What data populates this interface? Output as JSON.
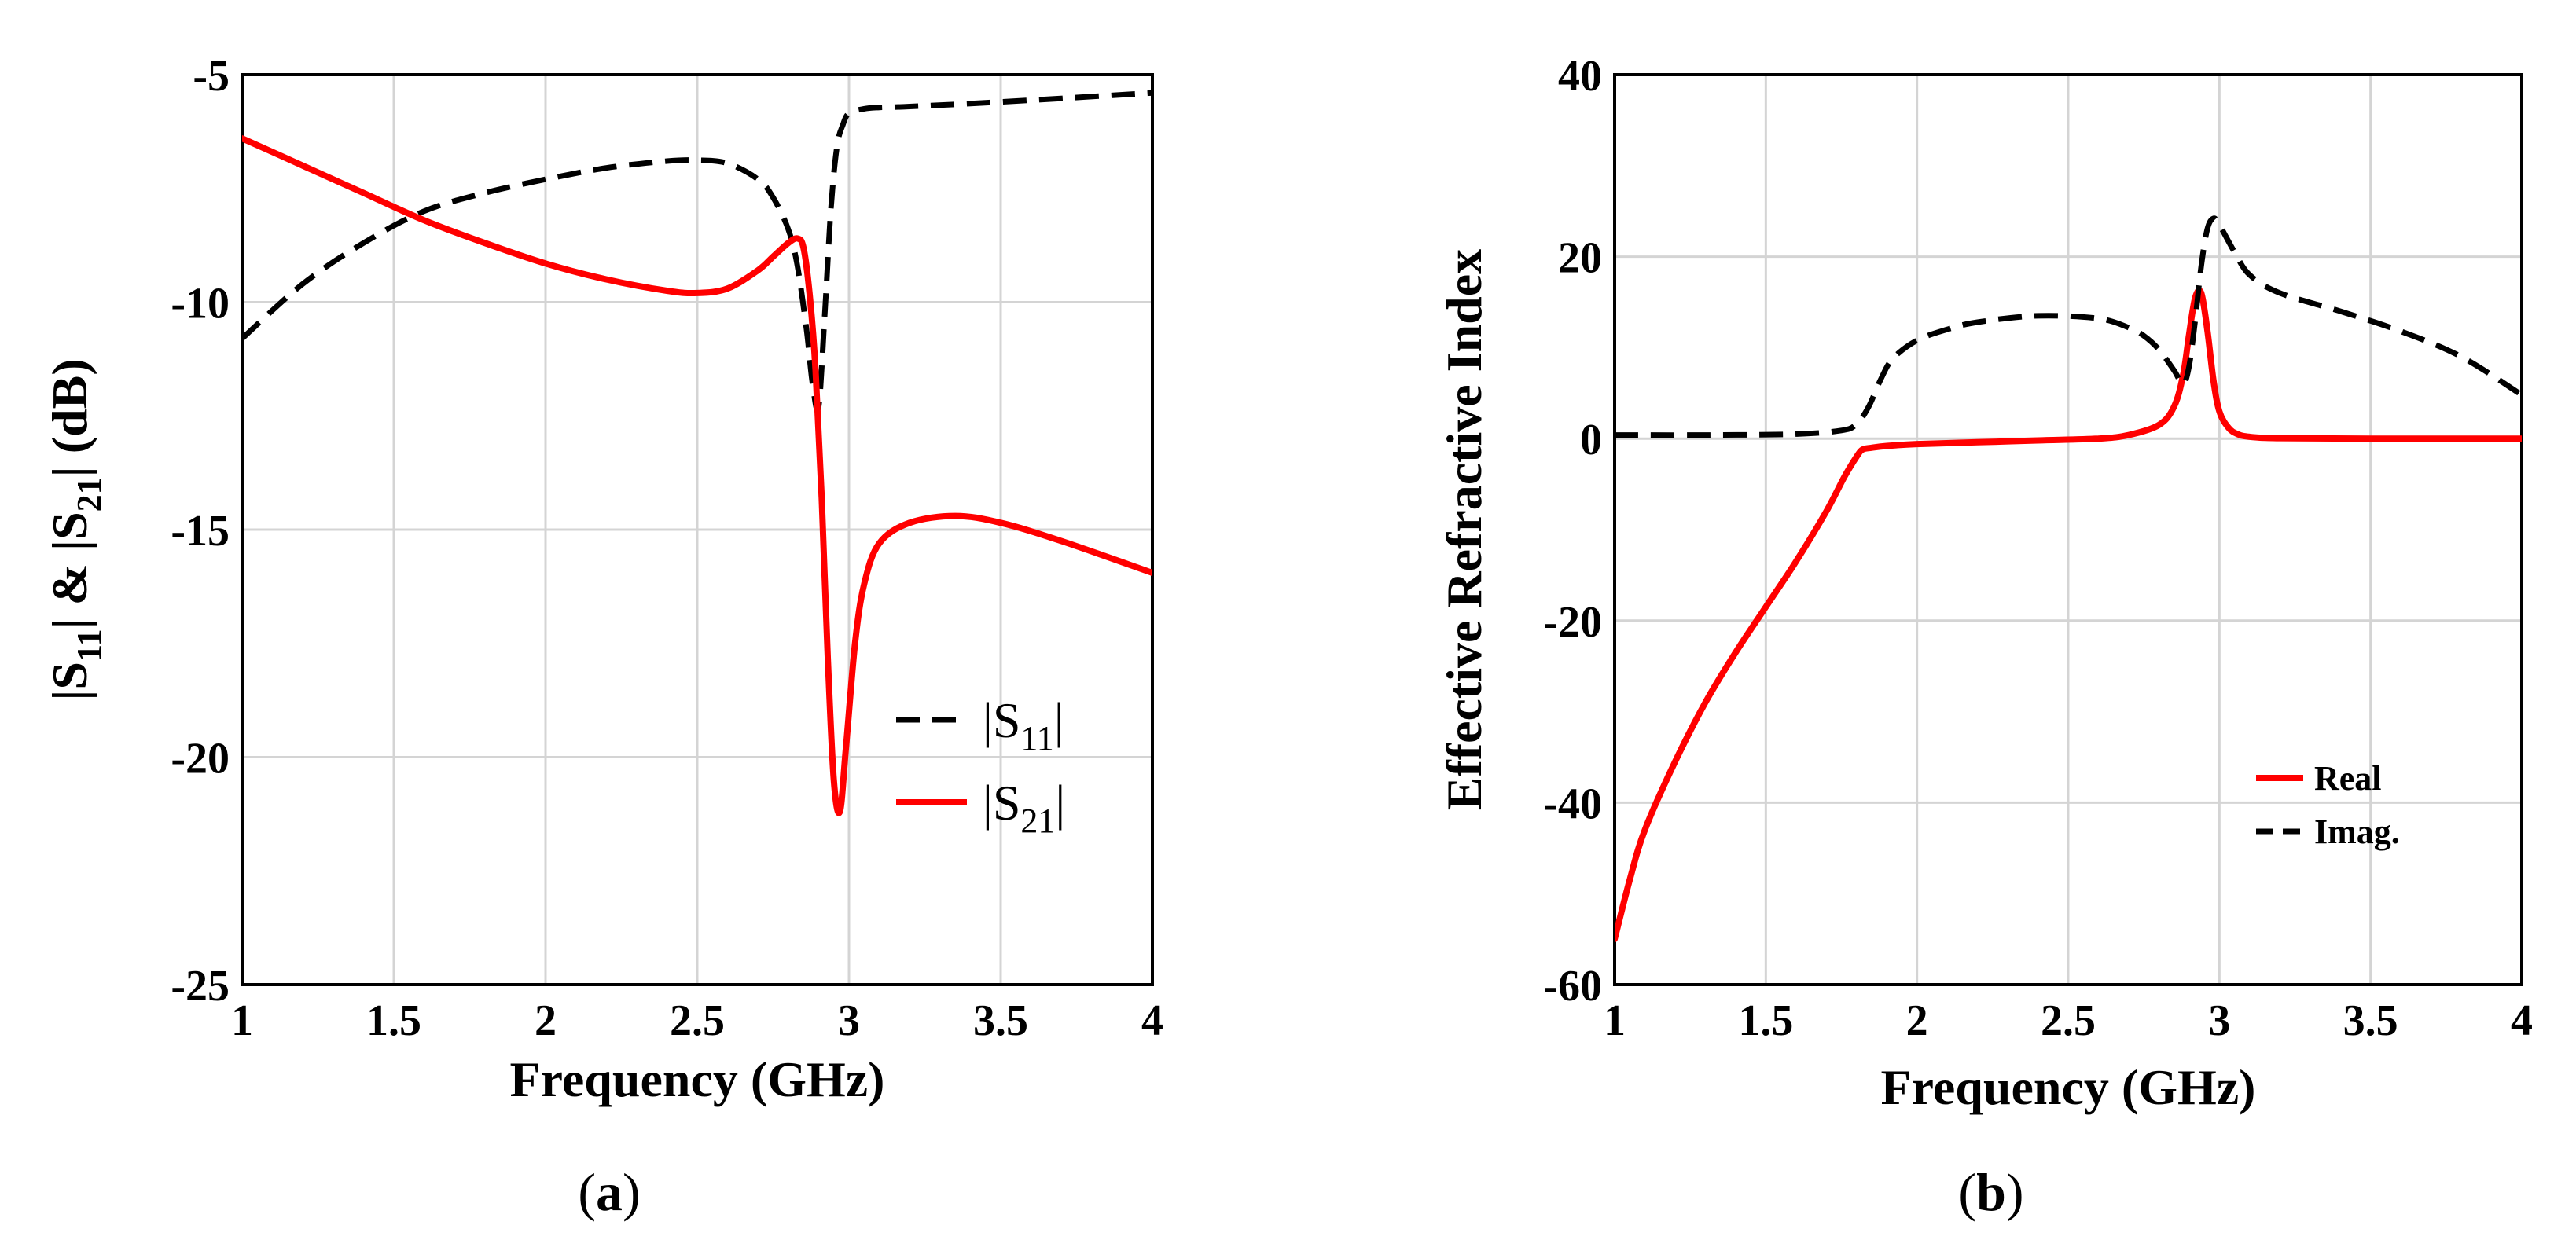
{
  "colors": {
    "red": "#ff0000",
    "black": "#000000",
    "grid": "#d4d4d4"
  },
  "chart_data": [
    {
      "type": "line",
      "panel": "(a)",
      "panel_letter": "a",
      "xlabel": "Frequency (GHz)",
      "ylabel": "|S11| & |S21| (dB)",
      "xlim": [
        1,
        4
      ],
      "ylim": [
        -25,
        -5
      ],
      "xticks": [
        1,
        1.5,
        2,
        2.5,
        3,
        3.5,
        4
      ],
      "xtick_labels": [
        "1",
        "1.5",
        "2",
        "2.5",
        "3",
        "3.5",
        "4"
      ],
      "yticks": [
        -25,
        -20,
        -15,
        -10,
        -5
      ],
      "ytick_labels": [
        "-25",
        "-20",
        "-15",
        "-10",
        "-5"
      ],
      "grid": true,
      "legend_position": "lower-right",
      "series": [
        {
          "name": "|S11|",
          "label_main": "|S",
          "label_sub": "11",
          "label_end": "|",
          "style": "dashed",
          "color": "#000000",
          "x": [
            1.0,
            1.2,
            1.4,
            1.6,
            1.8,
            2.0,
            2.2,
            2.4,
            2.5,
            2.6,
            2.7,
            2.75,
            2.8,
            2.83,
            2.86,
            2.88,
            2.9,
            2.92,
            2.94,
            2.96,
            2.98,
            3.0,
            3.05,
            3.1,
            3.2,
            3.5,
            4.0
          ],
          "y": [
            -10.8,
            -9.6,
            -8.7,
            -8.0,
            -7.6,
            -7.3,
            -7.05,
            -6.9,
            -6.88,
            -6.95,
            -7.3,
            -7.7,
            -8.4,
            -9.2,
            -10.6,
            -11.8,
            -12.3,
            -10.3,
            -8.0,
            -6.6,
            -6.1,
            -5.85,
            -5.75,
            -5.72,
            -5.7,
            -5.6,
            -5.4
          ]
        },
        {
          "name": "|S21|",
          "label_main": "|S",
          "label_sub": "21",
          "label_end": "|",
          "style": "solid",
          "color": "#ff0000",
          "x": [
            1.0,
            1.2,
            1.4,
            1.6,
            1.8,
            2.0,
            2.2,
            2.4,
            2.5,
            2.6,
            2.7,
            2.75,
            2.8,
            2.83,
            2.85,
            2.87,
            2.89,
            2.91,
            2.93,
            2.95,
            2.97,
            2.99,
            3.02,
            3.05,
            3.1,
            3.2,
            3.35,
            3.5,
            3.7,
            4.0
          ],
          "y": [
            -6.4,
            -7.0,
            -7.6,
            -8.2,
            -8.7,
            -9.15,
            -9.5,
            -9.75,
            -9.8,
            -9.7,
            -9.3,
            -9.0,
            -8.7,
            -8.6,
            -8.8,
            -9.8,
            -11.5,
            -14.3,
            -17.8,
            -20.5,
            -21.2,
            -19.8,
            -17.5,
            -16.2,
            -15.3,
            -14.85,
            -14.7,
            -14.85,
            -15.25,
            -15.95
          ]
        }
      ]
    },
    {
      "type": "line",
      "panel": "(b)",
      "panel_letter": "b",
      "xlabel": "Frequency (GHz)",
      "ylabel": "Effective Refractive Index",
      "xlim": [
        1,
        4
      ],
      "ylim": [
        -60,
        40
      ],
      "xticks": [
        1,
        1.5,
        2,
        2.5,
        3,
        3.5,
        4
      ],
      "xtick_labels": [
        "1",
        "1.5",
        "2",
        "2.5",
        "3",
        "3.5",
        "4"
      ],
      "yticks": [
        -60,
        -40,
        -20,
        0,
        20,
        40
      ],
      "ytick_labels": [
        "-60",
        "-40",
        "-20",
        "0",
        "20",
        "40"
      ],
      "grid": true,
      "legend_position": "lower-right",
      "series": [
        {
          "name": "Real",
          "style": "solid",
          "color": "#ff0000",
          "x": [
            1.0,
            1.05,
            1.1,
            1.2,
            1.3,
            1.4,
            1.5,
            1.6,
            1.7,
            1.76,
            1.8,
            1.82,
            1.85,
            1.9,
            2.0,
            2.2,
            2.4,
            2.6,
            2.7,
            2.8,
            2.85,
            2.88,
            2.9,
            2.92,
            2.94,
            2.96,
            2.98,
            3.0,
            3.03,
            3.06,
            3.1,
            3.2,
            3.5,
            4.0
          ],
          "y": [
            -55.0,
            -48.5,
            -43.0,
            -35.5,
            -29.0,
            -23.5,
            -18.5,
            -13.5,
            -8.0,
            -4.2,
            -2.0,
            -1.2,
            -1.0,
            -0.8,
            -0.6,
            -0.4,
            -0.2,
            0.0,
            0.4,
            1.5,
            3.5,
            7.0,
            11.5,
            15.5,
            16.0,
            12.0,
            6.5,
            3.0,
            1.2,
            0.5,
            0.2,
            0.05,
            0.0,
            0.0
          ]
        },
        {
          "name": "Imag.",
          "style": "dashed",
          "color": "#000000",
          "x": [
            1.0,
            1.3,
            1.6,
            1.75,
            1.8,
            1.84,
            1.88,
            1.92,
            2.0,
            2.1,
            2.2,
            2.4,
            2.6,
            2.7,
            2.75,
            2.8,
            2.85,
            2.88,
            2.9,
            2.92,
            2.94,
            2.96,
            2.98,
            3.0,
            3.05,
            3.1,
            3.2,
            3.4,
            3.6,
            3.8,
            4.0
          ],
          "y": [
            0.4,
            0.4,
            0.5,
            0.9,
            1.6,
            3.5,
            6.5,
            8.8,
            10.8,
            12.0,
            12.8,
            13.5,
            13.2,
            12.2,
            11.3,
            9.8,
            7.5,
            6.0,
            8.0,
            13.0,
            19.0,
            23.0,
            24.2,
            23.5,
            20.5,
            18.0,
            16.0,
            14.0,
            11.8,
            9.0,
            4.8
          ]
        }
      ]
    }
  ]
}
